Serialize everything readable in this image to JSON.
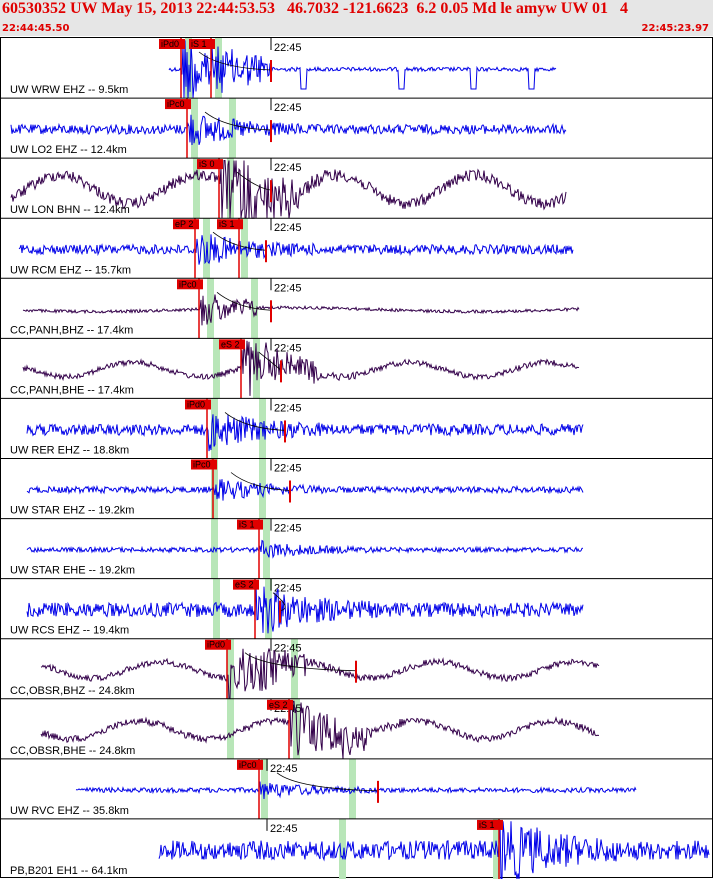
{
  "header": {
    "title": "60530352 UW May 15, 2013 22:44:53.53   46.7032 -121.6623  6.2 0.05 Md le amyw UW 01   4",
    "start_time": "22:44:45.50",
    "end_time": "22:45:23.97",
    "tick_time": "22:45"
  },
  "colors": {
    "header_bg": "#e6e6e6",
    "header_text": "#e00000",
    "trace_blue": "#0000e8",
    "trace_dark": "#33004a",
    "pick_red": "#e00000",
    "window_green": "#b8e6b8"
  },
  "traces": [
    {
      "label": "UW WRW EHZ -- 9.5km",
      "color": "blue",
      "amp": 9,
      "style": "spiky",
      "ps": 168,
      "pe": 555,
      "picks": [
        {
          "text": "iPd0",
          "x": 158
        },
        {
          "text": "iS 1",
          "x": 188
        }
      ],
      "g1": 184,
      "g2": 214,
      "arrival": 270
    },
    {
      "label": "UW LO2 EHZ -- 12.4km",
      "color": "blue",
      "amp": 6,
      "style": "noise",
      "ps": 10,
      "pe": 565,
      "picks": [
        {
          "text": "iPc0",
          "x": 164
        }
      ],
      "g1": 190,
      "g2": 228,
      "arrival": 270
    },
    {
      "label": "UW LON BHN -- 12.4km",
      "color": "dark",
      "amp": 16,
      "style": "wave",
      "ps": 10,
      "pe": 565,
      "picks": [
        {
          "text": "iS 0",
          "x": 196
        }
      ],
      "g1": 192,
      "g2": 226,
      "arrival": 270
    },
    {
      "label": "UW RCM EHZ -- 15.7km",
      "color": "blue",
      "amp": 6,
      "style": "noise",
      "ps": 18,
      "pe": 572,
      "picks": [
        {
          "text": "eP 2",
          "x": 172
        },
        {
          "text": "iS 1",
          "x": 216
        }
      ],
      "g1": 202,
      "g2": 240,
      "arrival": 265
    },
    {
      "label": "CC,PANH,BHZ -- 17.4km",
      "color": "dark",
      "amp": 3,
      "style": "flat",
      "ps": 22,
      "pe": 578,
      "picks": [
        {
          "text": "iPc0",
          "x": 176
        }
      ],
      "g1": 206,
      "g2": 250,
      "arrival": 270
    },
    {
      "label": "CC,PANH,BHE -- 17.4km",
      "color": "dark",
      "amp": 8,
      "style": "wave",
      "ps": 22,
      "pe": 578,
      "picks": [
        {
          "text": "eS 2",
          "x": 218
        }
      ],
      "g1": 212,
      "g2": 252,
      "arrival": 280
    },
    {
      "label": "UW RER EHZ -- 18.8km",
      "color": "blue",
      "amp": 7,
      "style": "noise",
      "ps": 26,
      "pe": 582,
      "picks": [
        {
          "text": "iPd0",
          "x": 184
        }
      ],
      "g1": 210,
      "g2": 258,
      "arrival": 284
    },
    {
      "label": "UW STAR EHZ -- 19.2km",
      "color": "blue",
      "amp": 4,
      "style": "noise",
      "ps": 26,
      "pe": 582,
      "picks": [
        {
          "text": "iPc0",
          "x": 190
        }
      ],
      "g1": 210,
      "g2": 258,
      "arrival": 289
    },
    {
      "label": "UW STAR EHE -- 19.2km",
      "color": "blue",
      "amp": 3,
      "style": "noise",
      "ps": 26,
      "pe": 582,
      "picks": [
        {
          "text": "iS 1",
          "x": 236
        }
      ],
      "g1": 210,
      "g2": 262,
      "arrival": 0
    },
    {
      "label": "UW RCS EHZ -- 19.4km",
      "color": "blue",
      "amp": 9,
      "style": "noise",
      "ps": 26,
      "pe": 582,
      "picks": [
        {
          "text": "eS 2",
          "x": 232
        }
      ],
      "g1": 212,
      "g2": 264,
      "arrival": 279
    },
    {
      "label": "CC,OBSR,BHZ -- 24.8km",
      "color": "dark",
      "amp": 9,
      "style": "wave",
      "ps": 40,
      "pe": 598,
      "picks": [
        {
          "text": "iPd0",
          "x": 204
        }
      ],
      "g1": 226,
      "g2": 290,
      "arrival": 355
    },
    {
      "label": "CC,OBSR,BHE -- 24.8km",
      "color": "dark",
      "amp": 10,
      "style": "wave",
      "ps": 40,
      "pe": 598,
      "picks": [
        {
          "text": "eS 2",
          "x": 266
        }
      ],
      "g1": 226,
      "g2": 292,
      "arrival": 0
    },
    {
      "label": "UW RVC EHZ -- 35.8km",
      "color": "blue",
      "amp": 3,
      "style": "noise",
      "ps": 75,
      "pe": 635,
      "picks": [
        {
          "text": "iPc0",
          "x": 236
        }
      ],
      "g1": 260,
      "g2": 348,
      "arrival": 377
    },
    {
      "label": "PB,B201 EH1 -- 64.1km",
      "color": "blue",
      "amp": 12,
      "style": "noise",
      "ps": 158,
      "pe": 708,
      "picks": [
        {
          "text": "iS 1",
          "x": 476
        }
      ],
      "g1": 338,
      "g2": 492,
      "arrival": 0
    }
  ]
}
